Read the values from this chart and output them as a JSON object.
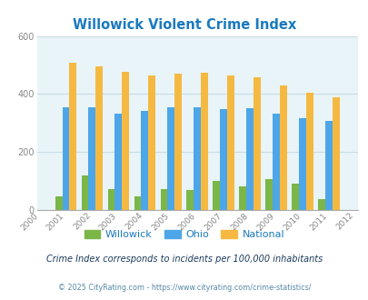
{
  "title": "Willowick Violent Crime Index",
  "title_color": "#1a7abf",
  "years": [
    2000,
    2001,
    2002,
    2003,
    2004,
    2005,
    2006,
    2007,
    2008,
    2009,
    2010,
    2011,
    2012
  ],
  "willowick": [
    0,
    47,
    120,
    72,
    47,
    72,
    68,
    100,
    83,
    108,
    90,
    38,
    0
  ],
  "ohio": [
    0,
    355,
    355,
    333,
    343,
    355,
    355,
    348,
    350,
    333,
    318,
    308,
    0
  ],
  "national": [
    0,
    507,
    496,
    475,
    463,
    470,
    474,
    465,
    457,
    429,
    405,
    388,
    0
  ],
  "willowick_color": "#7ab648",
  "ohio_color": "#4da6e8",
  "national_color": "#f5b942",
  "bg_color": "#e8f4f8",
  "ylim": [
    0,
    600
  ],
  "yticks": [
    0,
    200,
    400,
    600
  ],
  "bar_width": 0.27,
  "subtitle": "Crime Index corresponds to incidents per 100,000 inhabitants",
  "footer": "© 2025 CityRating.com - https://www.cityrating.com/crime-statistics/",
  "subtitle_color": "#1a3a5c",
  "footer_color": "#5588aa",
  "grid_color": "#c8dce4"
}
